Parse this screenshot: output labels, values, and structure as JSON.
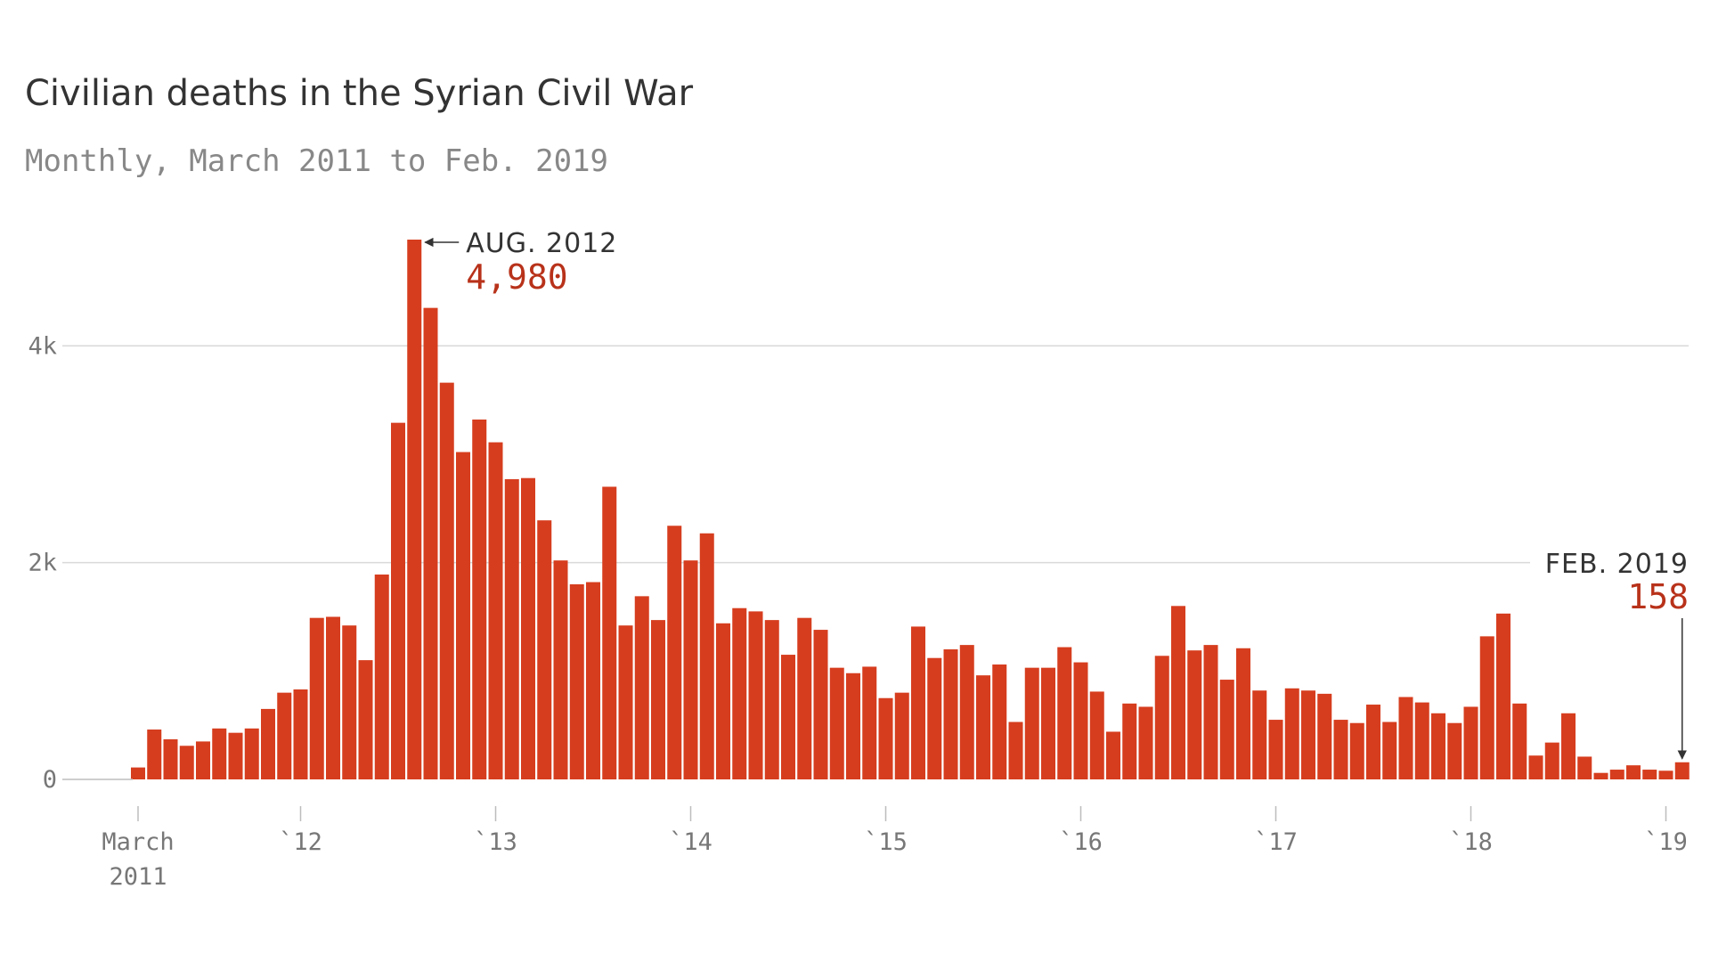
{
  "chart_data": {
    "type": "bar",
    "title": "Civilian deaths in the Syrian Civil War",
    "subtitle": "Monthly, March 2011 to Feb. 2019",
    "xlabel": "",
    "ylabel": "",
    "ylim": [
      0,
      5000
    ],
    "yticks": [
      {
        "value": 0,
        "label": "0"
      },
      {
        "value": 2000,
        "label": "2k"
      },
      {
        "value": 4000,
        "label": "4k"
      }
    ],
    "xticks": [
      {
        "index": 0,
        "label": "March",
        "label2": "2011"
      },
      {
        "index": 10,
        "label": "`12"
      },
      {
        "index": 22,
        "label": "`13"
      },
      {
        "index": 34,
        "label": "`14"
      },
      {
        "index": 46,
        "label": "`15"
      },
      {
        "index": 58,
        "label": "`16"
      },
      {
        "index": 70,
        "label": "`17"
      },
      {
        "index": 82,
        "label": "`18"
      },
      {
        "index": 94,
        "label": "`19"
      }
    ],
    "start_month": "March 2011",
    "end_month": "Feb. 2019",
    "bar_color": "#d63d1e",
    "values": [
      110,
      460,
      370,
      310,
      350,
      470,
      430,
      470,
      650,
      800,
      830,
      1490,
      1500,
      1420,
      1100,
      1890,
      3290,
      4980,
      4350,
      3660,
      3020,
      3320,
      3110,
      2770,
      2780,
      2390,
      2020,
      1800,
      1820,
      2700,
      1420,
      1690,
      1470,
      2340,
      2020,
      2270,
      1440,
      1580,
      1550,
      1470,
      1150,
      1490,
      1380,
      1030,
      980,
      1040,
      750,
      800,
      1410,
      1120,
      1200,
      1240,
      960,
      1060,
      530,
      1030,
      1030,
      1220,
      1080,
      810,
      440,
      700,
      670,
      1140,
      1600,
      1190,
      1240,
      920,
      1210,
      820,
      550,
      840,
      820,
      790,
      550,
      520,
      690,
      530,
      760,
      710,
      610,
      520,
      670,
      1320,
      1530,
      700,
      220,
      340,
      610,
      210,
      60,
      90,
      130,
      90,
      80,
      158
    ],
    "annotations": [
      {
        "index": 17,
        "date": "AUG. 2012",
        "value_label": "4,980"
      },
      {
        "index": 95,
        "date": "FEB. 2019",
        "value_label": "158"
      }
    ]
  },
  "colors": {
    "bar": "#d63d1e",
    "annotation_value": "#b8321a",
    "grid": "#d9d9d9",
    "axis": "#bdbdbd",
    "arrow": "#333333"
  }
}
